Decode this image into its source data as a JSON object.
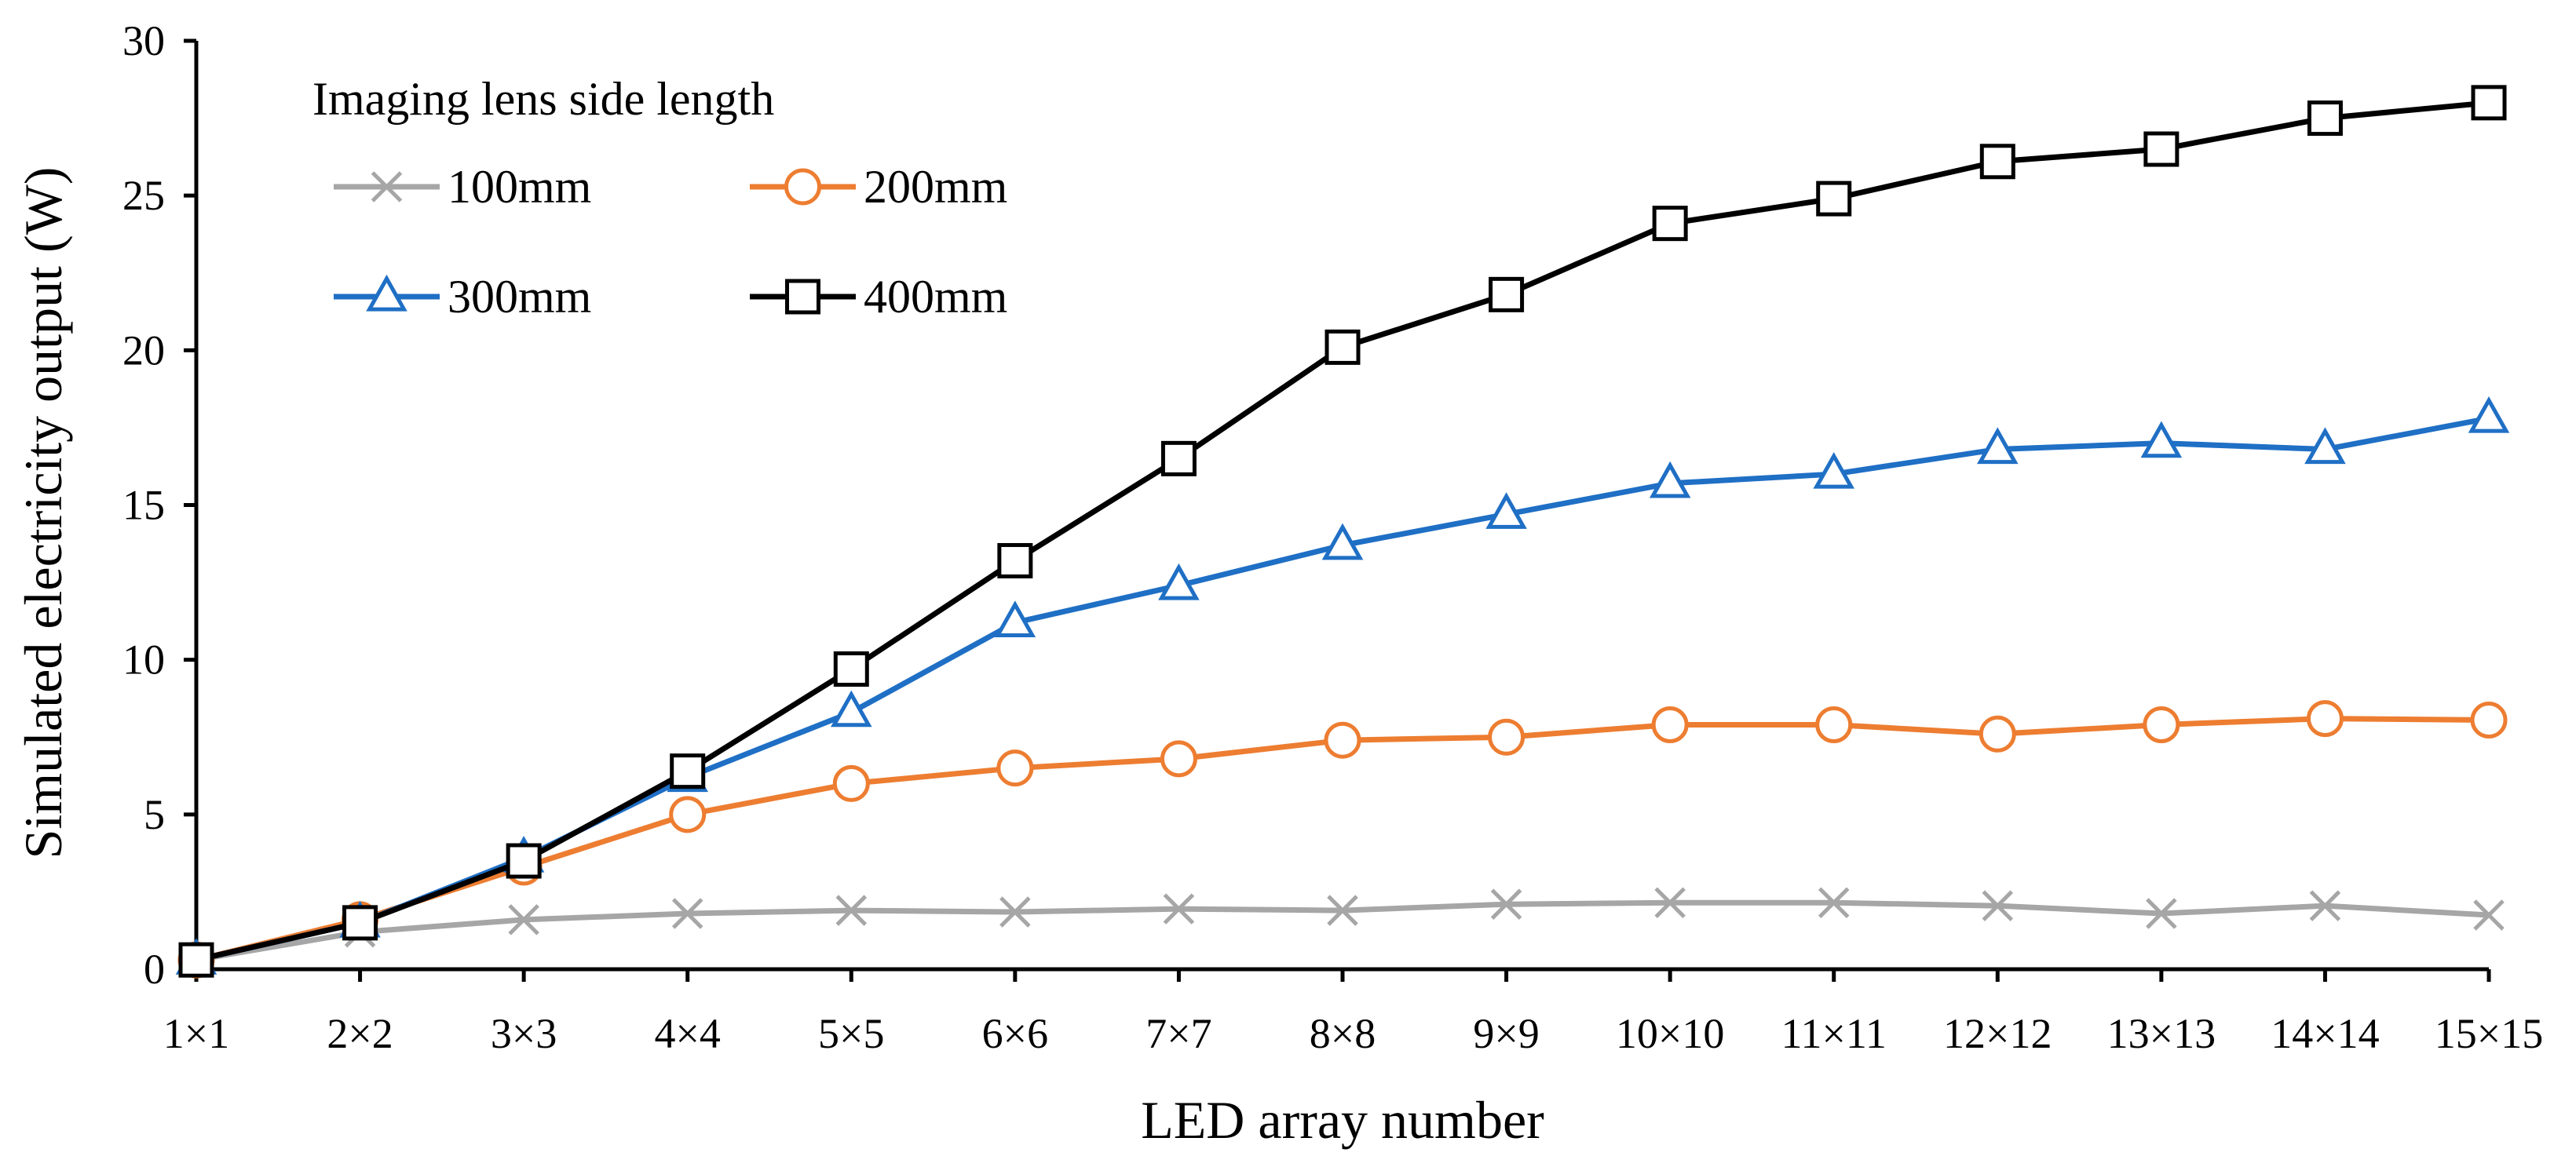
{
  "chart_data": {
    "type": "line",
    "title": "",
    "xlabel": "LED array number",
    "ylabel": "Simulated electricity output (W)",
    "categories": [
      "1×1",
      "2×2",
      "3×3",
      "4×4",
      "5×5",
      "6×6",
      "7×7",
      "8×8",
      "9×9",
      "10×10",
      "11×11",
      "12×12",
      "13×13",
      "14×14",
      "15×15"
    ],
    "ylim": [
      0,
      30
    ],
    "yticks": [
      0,
      5,
      10,
      15,
      20,
      25,
      30
    ],
    "grid": false,
    "legend": {
      "title": "Imaging lens side length",
      "placement": "top-left"
    },
    "series": [
      {
        "name": "100mm",
        "color": "#a6a6a6",
        "marker": "x",
        "values": [
          0.3,
          1.2,
          1.6,
          1.8,
          1.9,
          1.85,
          1.95,
          1.9,
          2.1,
          2.15,
          2.15,
          2.05,
          1.8,
          2.05,
          1.75
        ]
      },
      {
        "name": "200mm",
        "color": "#ed7d31",
        "marker": "circle",
        "values": [
          0.3,
          1.6,
          3.3,
          5.0,
          6.0,
          6.5,
          6.8,
          7.4,
          7.5,
          7.9,
          7.9,
          7.6,
          7.9,
          8.1,
          8.05
        ]
      },
      {
        "name": "300mm",
        "color": "#1f6fc5",
        "marker": "triangle",
        "values": [
          0.3,
          1.5,
          3.6,
          6.2,
          8.3,
          11.2,
          12.4,
          13.7,
          14.7,
          15.7,
          16.0,
          16.8,
          17.0,
          16.8,
          17.8
        ]
      },
      {
        "name": "400mm",
        "color": "#000000",
        "marker": "square",
        "values": [
          0.3,
          1.5,
          3.5,
          6.4,
          9.7,
          13.2,
          16.5,
          20.1,
          21.8,
          24.1,
          24.9,
          26.1,
          26.5,
          27.5,
          28.0
        ]
      }
    ]
  }
}
